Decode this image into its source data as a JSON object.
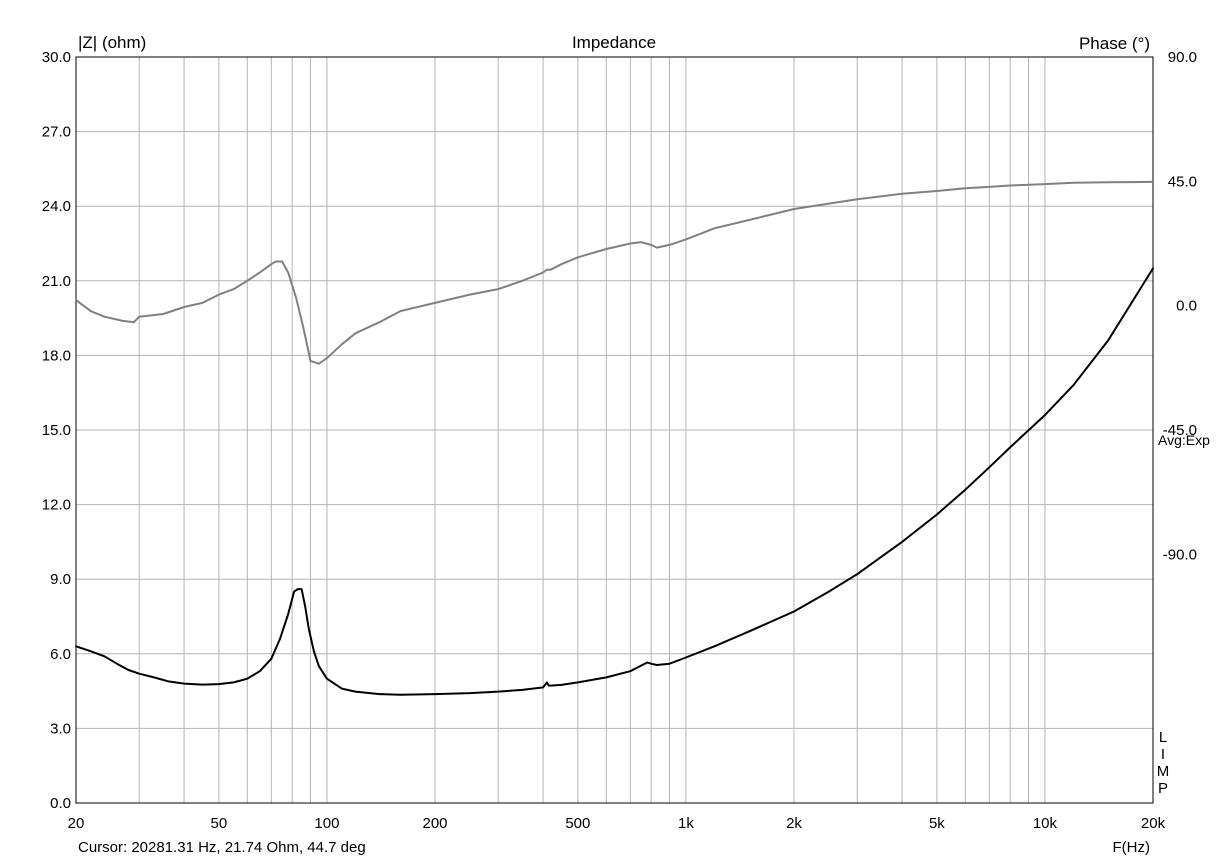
{
  "chart_data": {
    "type": "line",
    "title": "Impedance",
    "ylabel_left": "|Z| (ohm)",
    "ylabel_right": "Phase (°)",
    "xlabel": "F(Hz)",
    "x_scale": "log",
    "xlim": [
      20,
      20000
    ],
    "ylim_left": [
      0,
      30
    ],
    "ylim_right": [
      -180,
      90
    ],
    "grid": true,
    "x_ticks": [
      {
        "value": 20,
        "label": "20"
      },
      {
        "value": 50,
        "label": "50"
      },
      {
        "value": 100,
        "label": "100"
      },
      {
        "value": 200,
        "label": "200"
      },
      {
        "value": 500,
        "label": "500"
      },
      {
        "value": 1000,
        "label": "1k"
      },
      {
        "value": 2000,
        "label": "2k"
      },
      {
        "value": 5000,
        "label": "5k"
      },
      {
        "value": 10000,
        "label": "10k"
      },
      {
        "value": 20000,
        "label": "20k"
      }
    ],
    "y_left_ticks": [
      {
        "value": 0,
        "label": "0.0"
      },
      {
        "value": 3,
        "label": "3.0"
      },
      {
        "value": 6,
        "label": "6.0"
      },
      {
        "value": 9,
        "label": "9.0"
      },
      {
        "value": 12,
        "label": "12.0"
      },
      {
        "value": 15,
        "label": "15.0"
      },
      {
        "value": 18,
        "label": "18.0"
      },
      {
        "value": 21,
        "label": "21.0"
      },
      {
        "value": 24,
        "label": "24.0"
      },
      {
        "value": 27,
        "label": "27.0"
      },
      {
        "value": 30,
        "label": "30.0"
      }
    ],
    "y_right_ticks": [
      {
        "value": 90,
        "label": "90.0"
      },
      {
        "value": 45,
        "label": "45.0"
      },
      {
        "value": 0,
        "label": "0.0"
      },
      {
        "value": -45,
        "label": "-45.0"
      },
      {
        "value": -90,
        "label": "-90.0"
      }
    ],
    "right_annotation": "Avg:Exp",
    "vertical_label_letters": [
      "L",
      "I",
      "M",
      "P"
    ],
    "cursor_text": "Cursor: 20281.31 Hz, 21.74 Ohm, 44.7 deg",
    "series": [
      {
        "axis": "left",
        "color": "#000000",
        "x": [
          20,
          22,
          24,
          26,
          28,
          30,
          33,
          36,
          40,
          45,
          50,
          55,
          60,
          65,
          70,
          74,
          78,
          81,
          83,
          85,
          87,
          89,
          92,
          95,
          100,
          110,
          120,
          140,
          160,
          200,
          250,
          300,
          350,
          400,
          410,
          415,
          420,
          450,
          500,
          600,
          700,
          780,
          800,
          830,
          900,
          1000,
          1200,
          1500,
          2000,
          2500,
          3000,
          3500,
          4000,
          5000,
          6000,
          7000,
          8000,
          10000,
          12000,
          15000,
          20000
        ],
        "y": [
          6.3,
          6.1,
          5.9,
          5.6,
          5.35,
          5.2,
          5.05,
          4.9,
          4.8,
          4.76,
          4.78,
          4.85,
          5.0,
          5.3,
          5.8,
          6.6,
          7.6,
          8.5,
          8.6,
          8.6,
          7.9,
          7.0,
          6.1,
          5.5,
          5.0,
          4.6,
          4.48,
          4.38,
          4.35,
          4.38,
          4.42,
          4.48,
          4.55,
          4.65,
          4.85,
          4.72,
          4.72,
          4.75,
          4.85,
          5.05,
          5.3,
          5.65,
          5.6,
          5.55,
          5.6,
          5.85,
          6.3,
          6.9,
          7.7,
          8.5,
          9.2,
          9.9,
          10.5,
          11.6,
          12.6,
          13.5,
          14.3,
          15.6,
          16.8,
          18.6,
          21.5
        ]
      },
      {
        "axis": "right",
        "color": "#808080",
        "x": [
          20,
          22,
          24,
          27,
          29,
          30,
          35,
          40,
          45,
          50,
          55,
          60,
          65,
          70,
          72,
          75,
          78,
          82,
          86,
          90,
          95,
          100,
          110,
          120,
          140,
          160,
          200,
          250,
          300,
          350,
          400,
          410,
          420,
          450,
          500,
          600,
          700,
          750,
          800,
          830,
          900,
          1000,
          1200,
          1500,
          2000,
          3000,
          4000,
          5000,
          6000,
          7000,
          8000,
          10000,
          12000,
          15000,
          20000
        ],
        "y": [
          2,
          -2,
          -4,
          -5.5,
          -6,
          -4,
          -3,
          -0.5,
          1,
          4,
          6,
          9,
          12,
          15,
          16,
          16,
          12,
          3,
          -8,
          -20,
          -21,
          -19,
          -14,
          -10,
          -6,
          -2,
          1,
          4,
          6,
          9,
          12,
          13,
          13,
          15,
          17.5,
          20.5,
          22.5,
          23,
          22,
          21,
          22,
          24,
          28,
          31,
          35,
          38.5,
          40.5,
          41.5,
          42.5,
          43,
          43.5,
          44,
          44.5,
          44.7,
          44.8
        ]
      }
    ]
  }
}
